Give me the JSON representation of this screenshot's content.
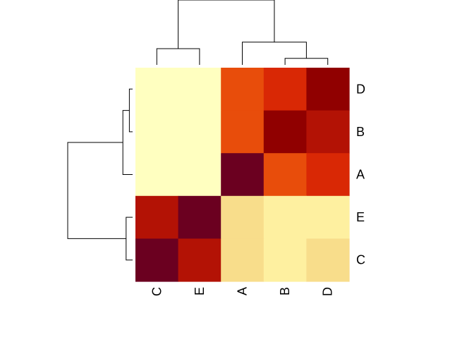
{
  "chart_data": {
    "type": "heatmap",
    "title": "",
    "xlabel": "",
    "ylabel": "",
    "columns": [
      "C",
      "E",
      "A",
      "B",
      "D"
    ],
    "rows": [
      "D",
      "B",
      "A",
      "E",
      "C"
    ],
    "color_levels": [
      "#FFFFC0",
      "#FEF0A0",
      "#F8DD8B",
      "#E84D0B",
      "#D92805",
      "#B31205",
      "#900000",
      "#6B0020"
    ],
    "level_index": [
      [
        0,
        0,
        3,
        4,
        6
      ],
      [
        0,
        0,
        3,
        6,
        5
      ],
      [
        0,
        0,
        7,
        3,
        4
      ],
      [
        5,
        7,
        2,
        1,
        1
      ],
      [
        7,
        5,
        2,
        1,
        2
      ]
    ],
    "column_dendrogram": [
      {
        "left": "C",
        "right": "E",
        "height": 0.25
      },
      {
        "left": "B",
        "right": "D",
        "height": 0.1
      },
      {
        "left": "A",
        "right": "BD",
        "height": 0.35
      },
      {
        "left": "CE",
        "right": "ABD",
        "height": 1.0
      }
    ],
    "row_dendrogram": [
      {
        "left": "D",
        "right": "B",
        "height": 0.05
      },
      {
        "left": "DB",
        "right": "A",
        "height": 0.15
      },
      {
        "left": "E",
        "right": "C",
        "height": 0.1
      },
      {
        "left": "DBA",
        "right": "EC",
        "height": 1.0
      }
    ]
  }
}
